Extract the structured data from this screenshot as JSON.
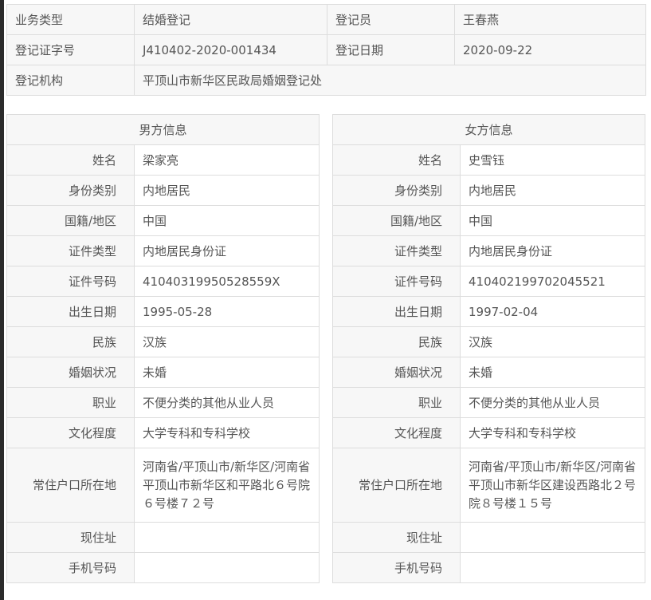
{
  "top": {
    "rows": [
      [
        {
          "label": "业务类型",
          "value": "结婚登记"
        },
        {
          "label": "登记员",
          "value": "王春燕"
        }
      ],
      [
        {
          "label": "登记证字号",
          "value": "J410402-2020-001434"
        },
        {
          "label": "登记日期",
          "value": "2020-09-22"
        }
      ]
    ],
    "org_label": "登记机构",
    "org_value": "平顶山市新华区民政局婚姻登记处"
  },
  "male": {
    "title": "男方信息",
    "fields": [
      {
        "label": "姓名",
        "value": "梁家亮"
      },
      {
        "label": "身份类别",
        "value": "内地居民"
      },
      {
        "label": "国籍/地区",
        "value": "中国"
      },
      {
        "label": "证件类型",
        "value": "内地居民身份证"
      },
      {
        "label": "证件号码",
        "value": "41040319950528559X"
      },
      {
        "label": "出生日期",
        "value": "1995-05-28"
      },
      {
        "label": "民族",
        "value": "汉族"
      },
      {
        "label": "婚姻状况",
        "value": "未婚"
      },
      {
        "label": "职业",
        "value": "不便分类的其他从业人员"
      },
      {
        "label": "文化程度",
        "value": "大学专科和专科学校"
      },
      {
        "label": "常住户口所在地",
        "value": "河南省/平顶山市/新华区/河南省平顶山市新华区和平路北６号院６号楼７２号"
      },
      {
        "label": "现住址",
        "value": ""
      },
      {
        "label": "手机号码",
        "value": ""
      }
    ]
  },
  "female": {
    "title": "女方信息",
    "fields": [
      {
        "label": "姓名",
        "value": "史雪钰"
      },
      {
        "label": "身份类别",
        "value": "内地居民"
      },
      {
        "label": "国籍/地区",
        "value": "中国"
      },
      {
        "label": "证件类型",
        "value": "内地居民身份证"
      },
      {
        "label": "证件号码",
        "value": "410402199702045521"
      },
      {
        "label": "出生日期",
        "value": "1997-02-04"
      },
      {
        "label": "民族",
        "value": "汉族"
      },
      {
        "label": "婚姻状况",
        "value": "未婚"
      },
      {
        "label": "职业",
        "value": "不便分类的其他从业人员"
      },
      {
        "label": "文化程度",
        "value": "大学专科和专科学校"
      },
      {
        "label": "常住户口所在地",
        "value": "河南省/平顶山市/新华区/河南省平顶山市新华区建设西路北２号院８号楼１５号"
      },
      {
        "label": "现住址",
        "value": ""
      },
      {
        "label": "手机号码",
        "value": ""
      }
    ]
  }
}
